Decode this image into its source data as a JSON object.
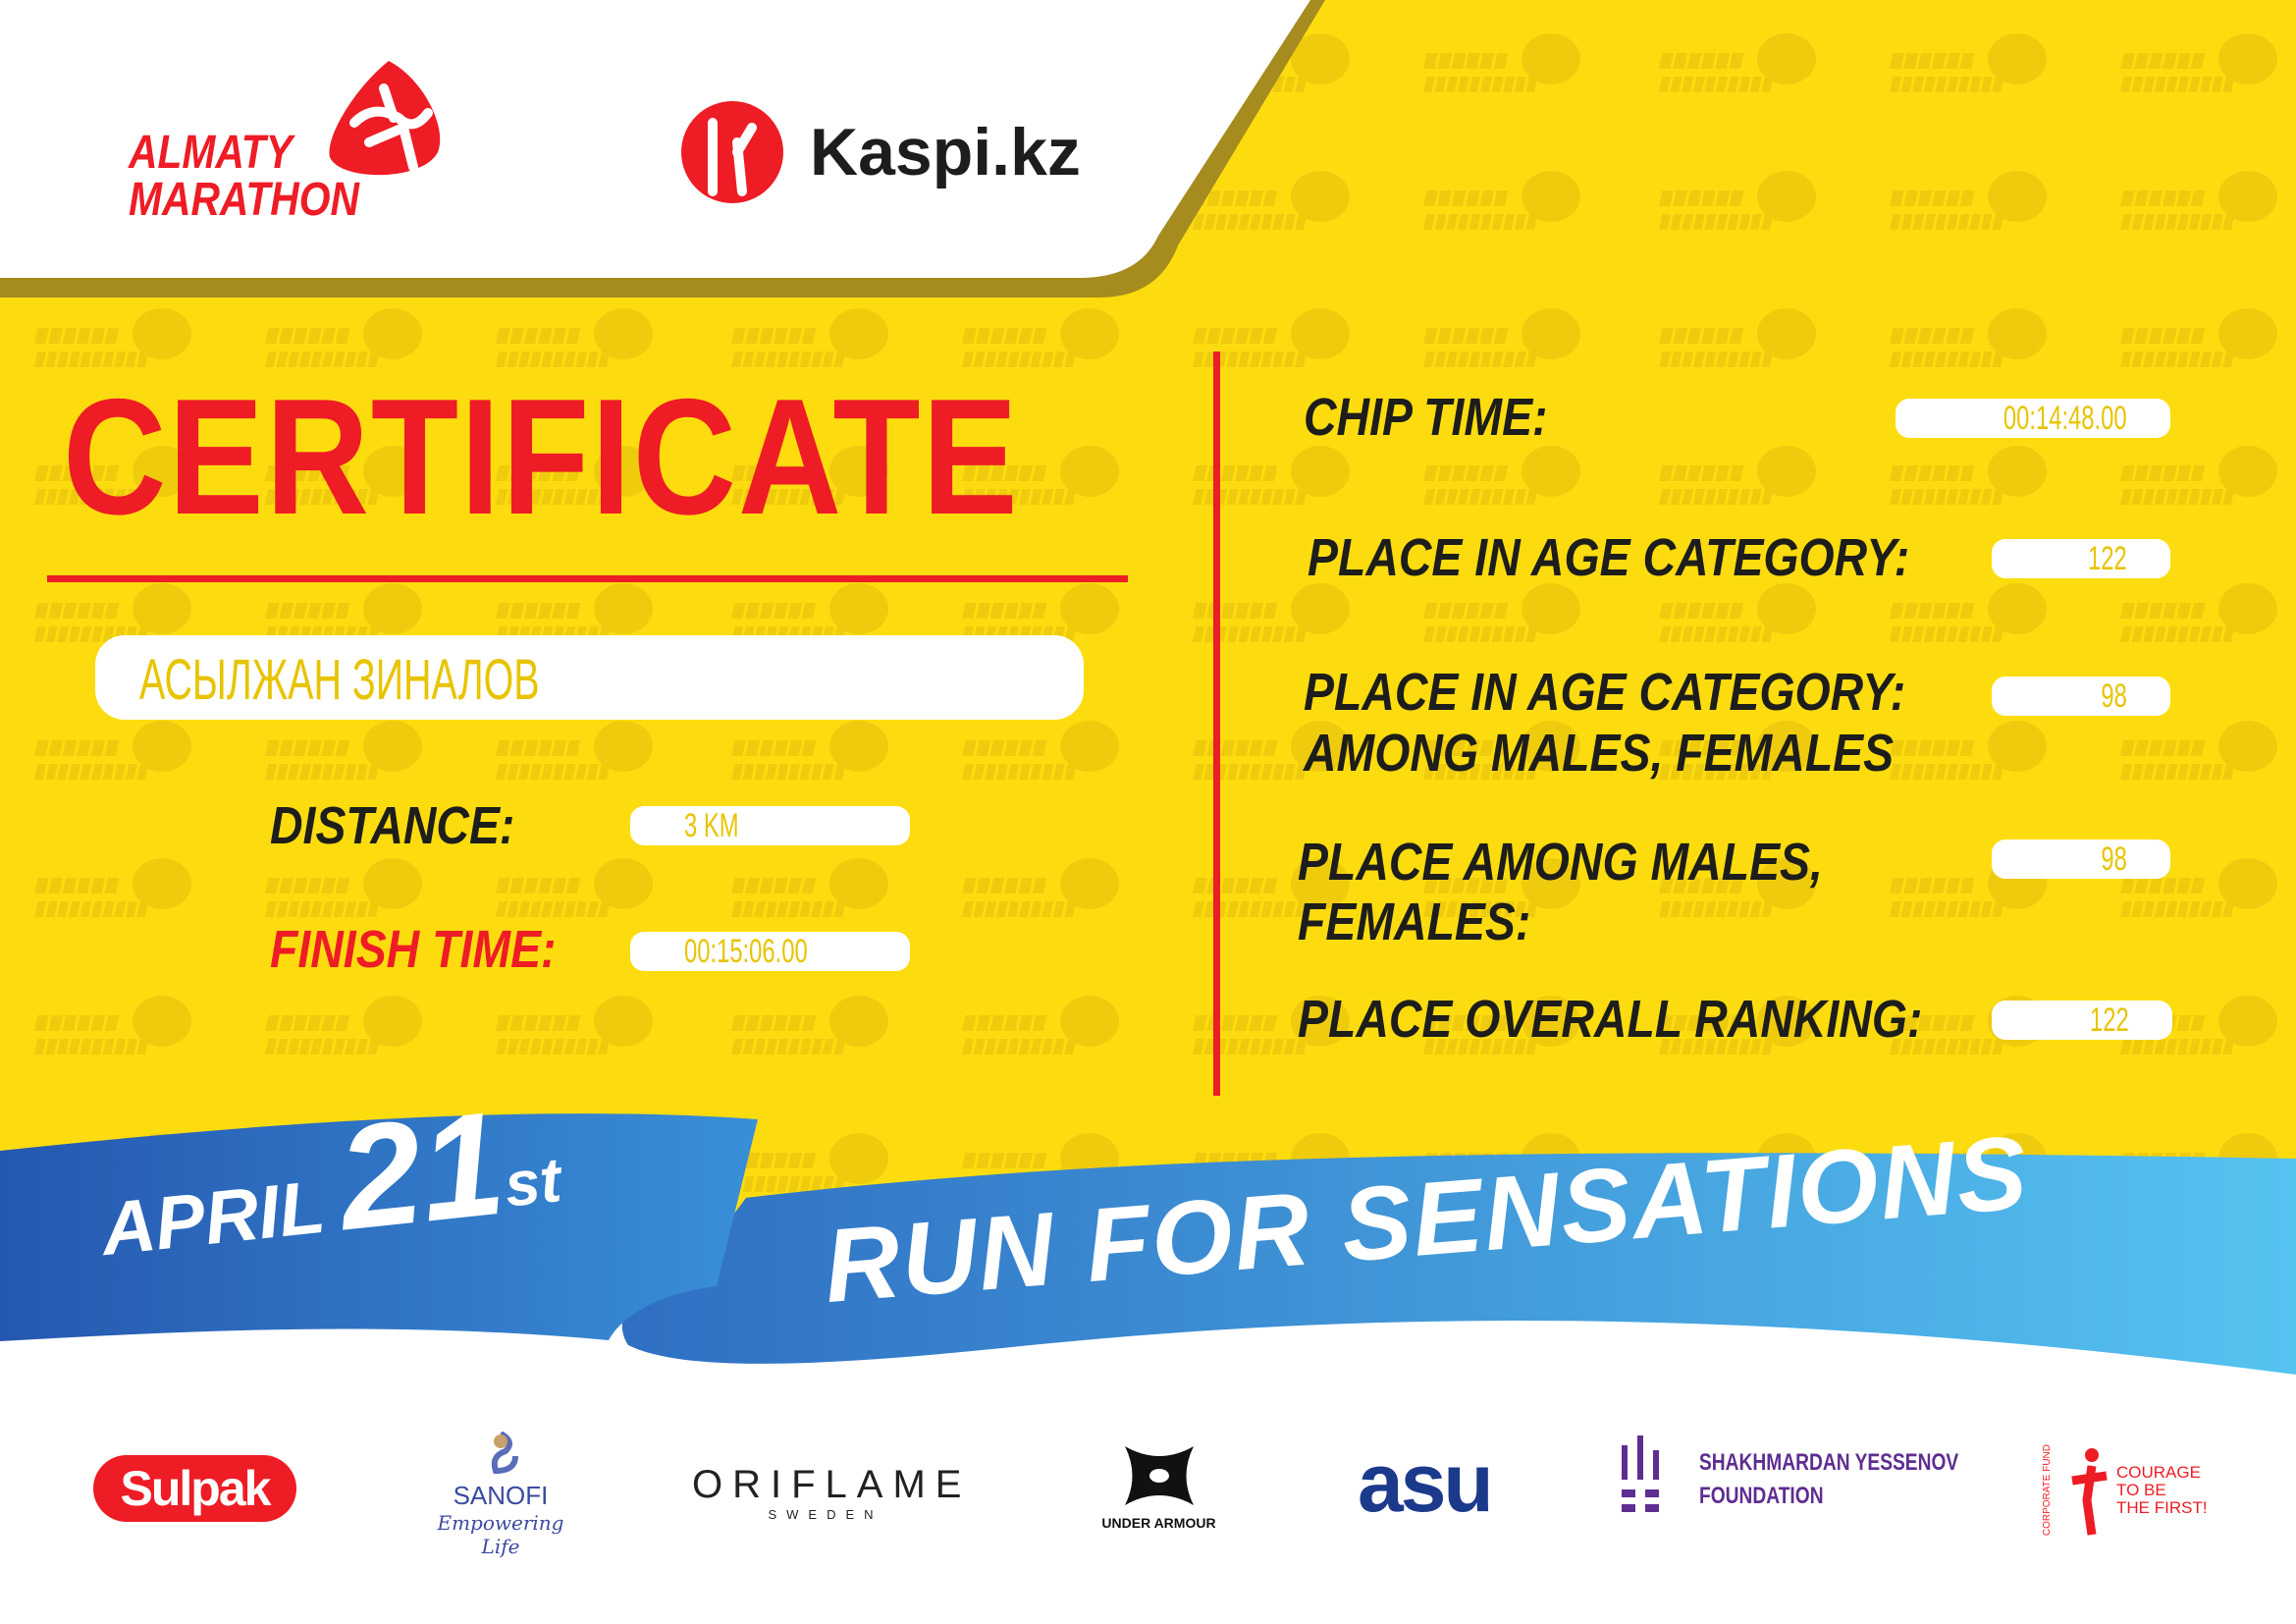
{
  "colors": {
    "yellow": "#FDDC0F",
    "red": "#EE1C25",
    "blue": "#2F6FC3",
    "light_blue": "#52C0EE",
    "olive": "#A68B1E"
  },
  "watermark": {
    "line1": "ALMATY",
    "line2": "MARATHON"
  },
  "header": {
    "logo_line1": "ALMATY",
    "logo_line2": "MARATHON",
    "sponsor": "Kaspi.kz"
  },
  "certificate": {
    "title": "CERTIFICATE",
    "name": "АСЫЛЖАН ЗИНАЛОВ",
    "distance_label": "DISTANCE:",
    "distance_value": "3 KM",
    "finish_label": "FINISH TIME:",
    "finish_value": "00:15:06.00",
    "chip_label": "CHIP TIME:",
    "chip_value": "00:14:48.00",
    "age_place_label": "PLACE IN AGE CATEGORY:",
    "age_place_value": "122",
    "age_gender_label_1": "PLACE IN AGE CATEGORY:",
    "age_gender_label_2": "AMONG MALES, FEMALES",
    "age_gender_value": "98",
    "gender_label_1": "PLACE AMONG MALES,",
    "gender_label_2": "FEMALES:",
    "gender_value": "98",
    "overall_label": "PLACE OVERALL RANKING:",
    "overall_value": "122"
  },
  "ribbon": {
    "month": "APRIL",
    "day": "21",
    "suffix": "st",
    "slogan": "RUN FOR SENSATIONS"
  },
  "sponsors": {
    "sulpak": "Sulpak",
    "sanofi": "SANOFI",
    "sanofi_tagline": "Empowering Life",
    "oriflame": "ORIFLAME",
    "oriflame_sub": "SWEDEN",
    "under_armour": "UNDER ARMOUR",
    "asu": "asu",
    "yessenov_1": "SHAKHMARDAN YESSENOV",
    "yessenov_2": "FOUNDATION",
    "courage_arc": "CORPORATE FUND",
    "courage_1": "COURAGE",
    "courage_2": "TO BE",
    "courage_3": "THE FIRST!"
  }
}
